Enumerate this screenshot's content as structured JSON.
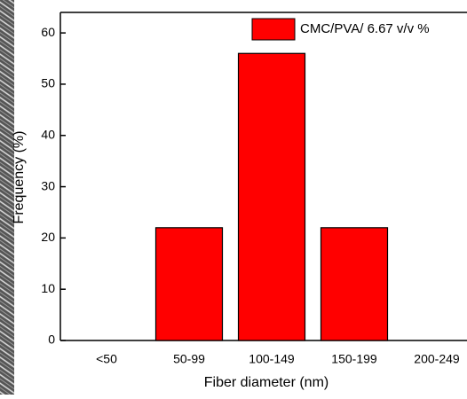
{
  "chart_data": {
    "type": "bar",
    "x_label": "Fiber diameter (nm)",
    "y_label": "Frequency (%)",
    "categories": [
      "<50",
      "50-99",
      "100-149",
      "150-199",
      "200-249"
    ],
    "series": [
      {
        "name": "CMC/PVA/ 6.67 v/v %",
        "color": "#ff0000",
        "values": [
          0,
          22,
          56,
          22,
          0
        ]
      }
    ],
    "ylim": [
      0,
      64
    ],
    "yticks": [
      0,
      10,
      20,
      30,
      40,
      50,
      60
    ],
    "legend": "upper right"
  }
}
